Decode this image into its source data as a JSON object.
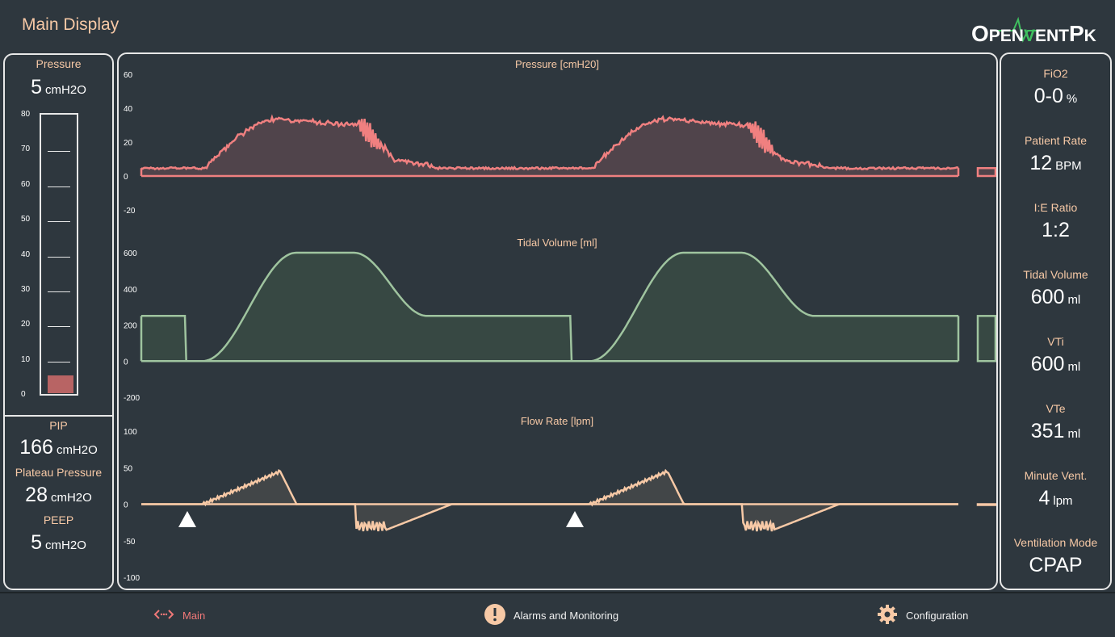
{
  "header": {
    "title": "Main Display",
    "logo": "OpenVentPk",
    "logo_parts": {
      "o": "O",
      "pen": "PEN",
      "v": "V",
      "ent": "ENT",
      "p": "P",
      "k": "K"
    }
  },
  "left_panel": {
    "pressure_label": "Pressure",
    "pressure_value": "5",
    "pressure_unit": "cmH2O",
    "gauge_ticks": [
      "80",
      "70",
      "60",
      "50",
      "40",
      "30",
      "20",
      "10",
      "0"
    ],
    "gauge_level": 5,
    "gauge_max": 80,
    "pip_label": "PIP",
    "pip_value": "166",
    "pip_unit": "cmH2O",
    "plateau_label": "Plateau Pressure",
    "plateau_value": "28",
    "plateau_unit": "cmH2O",
    "peep_label": "PEEP",
    "peep_value": "5",
    "peep_unit": "cmH2O"
  },
  "chart_data": [
    {
      "type": "area",
      "title": "Pressure [cmH20]",
      "ylim": [
        -20,
        60
      ],
      "yticks": [
        "60",
        "40",
        "20",
        "0",
        "-20"
      ],
      "color": "#f08080",
      "description_series": "two breaths peaking near 32 cmH20 over baseline ~4"
    },
    {
      "type": "area",
      "title": "Tidal Volume [ml]",
      "ylim": [
        -200,
        600
      ],
      "yticks": [
        "600",
        "400",
        "200",
        "0",
        "-200"
      ],
      "color": "#9fc49f"
    },
    {
      "type": "area",
      "title": "Flow Rate [lpm]",
      "ylim": [
        -100,
        100
      ],
      "yticks": [
        "100",
        "50",
        "0",
        "-50",
        "-100"
      ],
      "color": "#f7c9a6"
    }
  ],
  "right_panel": [
    {
      "label": "FiO2",
      "value": "0-0",
      "unit": "%"
    },
    {
      "label": "Patient Rate",
      "value": "12",
      "unit": "BPM"
    },
    {
      "label": "I:E Ratio",
      "value": "1:2",
      "unit": ""
    },
    {
      "label": "Tidal Volume",
      "value": "600",
      "unit": "ml"
    },
    {
      "label": "VTi",
      "value": "600",
      "unit": "ml"
    },
    {
      "label": "VTe",
      "value": "351",
      "unit": "ml"
    },
    {
      "label": "Minute Vent.",
      "value": "4",
      "unit": "lpm"
    },
    {
      "label": "Ventilation Mode",
      "value": "CPAP",
      "unit": ""
    }
  ],
  "footer": {
    "main_label": "Main",
    "alarms_label": "Alarms and Monitoring",
    "config_label": "Configuration"
  }
}
